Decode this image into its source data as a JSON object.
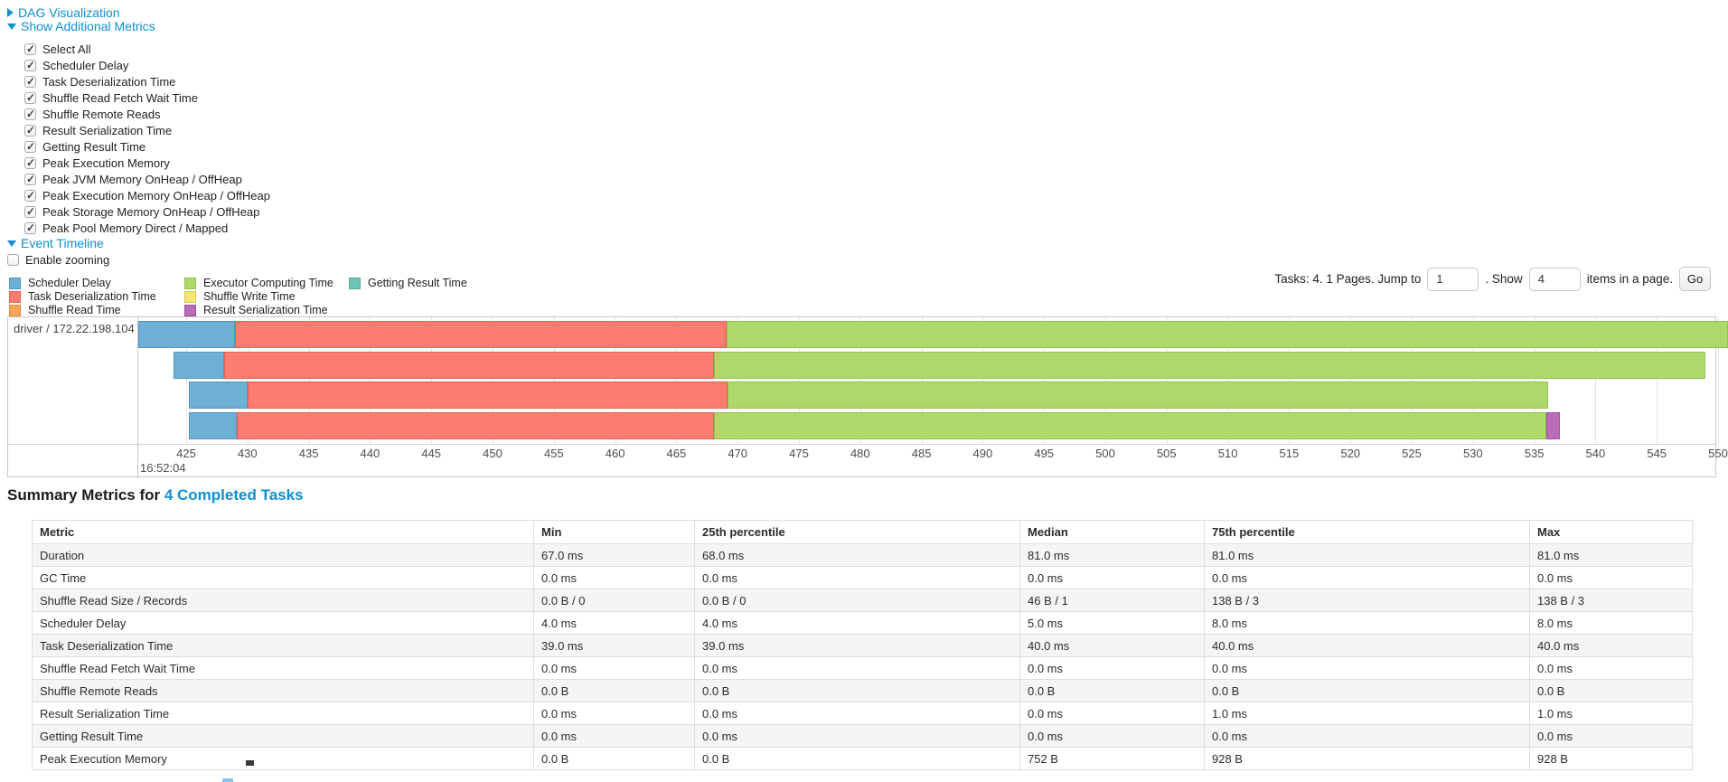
{
  "sections": {
    "dag": {
      "label": "DAG Visualization",
      "state": "collapsed"
    },
    "additional_metrics": {
      "label": "Show Additional Metrics",
      "state": "expanded"
    },
    "event_timeline": {
      "label": "Event Timeline",
      "state": "expanded"
    }
  },
  "metric_checkboxes": [
    {
      "label": "Select All",
      "checked": true
    },
    {
      "label": "Scheduler Delay",
      "checked": true
    },
    {
      "label": "Task Deserialization Time",
      "checked": true
    },
    {
      "label": "Shuffle Read Fetch Wait Time",
      "checked": true
    },
    {
      "label": "Shuffle Remote Reads",
      "checked": true
    },
    {
      "label": "Result Serialization Time",
      "checked": true
    },
    {
      "label": "Getting Result Time",
      "checked": true
    },
    {
      "label": "Peak Execution Memory",
      "checked": true
    },
    {
      "label": "Peak JVM Memory OnHeap / OffHeap",
      "checked": true
    },
    {
      "label": "Peak Execution Memory OnHeap / OffHeap",
      "checked": true
    },
    {
      "label": "Peak Storage Memory OnHeap / OffHeap",
      "checked": true
    },
    {
      "label": "Peak Pool Memory Direct / Mapped",
      "checked": true
    }
  ],
  "enable_zooming": {
    "label": "Enable zooming",
    "checked": false
  },
  "colors": {
    "link": "#0e90d2",
    "series": {
      "scheduler_delay": {
        "fill": "#6EAFD6",
        "border": "#5295C2"
      },
      "task_deserialization": {
        "fill": "#FC7D70",
        "border": "#EE5E4F"
      },
      "shuffle_read": {
        "fill": "#FCA458",
        "border": "#E8883C"
      },
      "executor_computing": {
        "fill": "#ACD96A",
        "border": "#93C24E"
      },
      "shuffle_write": {
        "fill": "#F4E670",
        "border": "#D9C94E"
      },
      "result_serialization": {
        "fill": "#B96CB9",
        "border": "#A0519F"
      },
      "getting_result": {
        "fill": "#6DC5B5",
        "border": "#4FAD9B"
      }
    }
  },
  "legend": {
    "columns": [
      [
        {
          "label": "Scheduler Delay",
          "series": "scheduler_delay"
        },
        {
          "label": "Task Deserialization Time",
          "series": "task_deserialization"
        },
        {
          "label": "Shuffle Read Time",
          "series": "shuffle_read"
        }
      ],
      [
        {
          "label": "Executor Computing Time",
          "series": "executor_computing"
        },
        {
          "label": "Shuffle Write Time",
          "series": "shuffle_write"
        },
        {
          "label": "Result Serialization Time",
          "series": "result_serialization"
        }
      ],
      [
        {
          "label": "Getting Result Time",
          "series": "getting_result"
        }
      ]
    ]
  },
  "pagination": {
    "prefix": "Tasks: 4. 1 Pages. Jump to",
    "jump_value": "1",
    "middle": ". Show",
    "show_value": "4",
    "suffix": "items in a page.",
    "go_label": "Go"
  },
  "timeline_chart": {
    "type": "gantt-timeline",
    "group_label": "driver / 172.22.198.104",
    "axis_major_label": "16:52:04",
    "axis_tick_min": 425,
    "axis_tick_max": 550,
    "axis_tick_step": 5,
    "tasks": [
      {
        "segments": [
          {
            "series": "scheduler_delay",
            "start": 421.1,
            "end": 429.0
          },
          {
            "series": "task_deserialization",
            "start": 429.0,
            "end": 469.1
          },
          {
            "series": "executor_computing",
            "start": 469.1,
            "end": 550.8
          }
        ]
      },
      {
        "segments": [
          {
            "series": "scheduler_delay",
            "start": 424.0,
            "end": 428.1
          },
          {
            "series": "task_deserialization",
            "start": 428.1,
            "end": 468.1
          },
          {
            "series": "executor_computing",
            "start": 468.1,
            "end": 549.0
          }
        ]
      },
      {
        "segments": [
          {
            "series": "scheduler_delay",
            "start": 425.2,
            "end": 430.0
          },
          {
            "series": "task_deserialization",
            "start": 430.0,
            "end": 469.2
          },
          {
            "series": "executor_computing",
            "start": 469.2,
            "end": 536.1
          }
        ]
      },
      {
        "segments": [
          {
            "series": "scheduler_delay",
            "start": 425.2,
            "end": 429.1
          },
          {
            "series": "task_deserialization",
            "start": 429.1,
            "end": 468.1
          },
          {
            "series": "executor_computing",
            "start": 468.1,
            "end": 536.0
          },
          {
            "series": "result_serialization",
            "start": 536.0,
            "end": 537.1
          }
        ]
      }
    ]
  },
  "summary": {
    "heading_prefix": "Summary Metrics for ",
    "heading_link": "4 Completed Tasks",
    "table": {
      "columns": [
        "Metric",
        "Min",
        "25th percentile",
        "Median",
        "75th percentile",
        "Max"
      ],
      "rows": [
        [
          "Duration",
          "67.0 ms",
          "68.0 ms",
          "81.0 ms",
          "81.0 ms",
          "81.0 ms"
        ],
        [
          "GC Time",
          "0.0 ms",
          "0.0 ms",
          "0.0 ms",
          "0.0 ms",
          "0.0 ms"
        ],
        [
          "Shuffle Read Size / Records",
          "0.0 B / 0",
          "0.0 B / 0",
          "46 B / 1",
          "138 B / 3",
          "138 B / 3"
        ],
        [
          "Scheduler Delay",
          "4.0 ms",
          "4.0 ms",
          "5.0 ms",
          "8.0 ms",
          "8.0 ms"
        ],
        [
          "Task Deserialization Time",
          "39.0 ms",
          "39.0 ms",
          "40.0 ms",
          "40.0 ms",
          "40.0 ms"
        ],
        [
          "Shuffle Read Fetch Wait Time",
          "0.0 ms",
          "0.0 ms",
          "0.0 ms",
          "0.0 ms",
          "0.0 ms"
        ],
        [
          "Shuffle Remote Reads",
          "0.0 B",
          "0.0 B",
          "0.0 B",
          "0.0 B",
          "0.0 B"
        ],
        [
          "Result Serialization Time",
          "0.0 ms",
          "0.0 ms",
          "0.0 ms",
          "1.0 ms",
          "1.0 ms"
        ],
        [
          "Getting Result Time",
          "0.0 ms",
          "0.0 ms",
          "0.0 ms",
          "0.0 ms",
          "0.0 ms"
        ],
        [
          "Peak Execution Memory",
          "0.0 B",
          "0.0 B",
          "752 B",
          "928 B",
          "928 B"
        ]
      ]
    }
  }
}
